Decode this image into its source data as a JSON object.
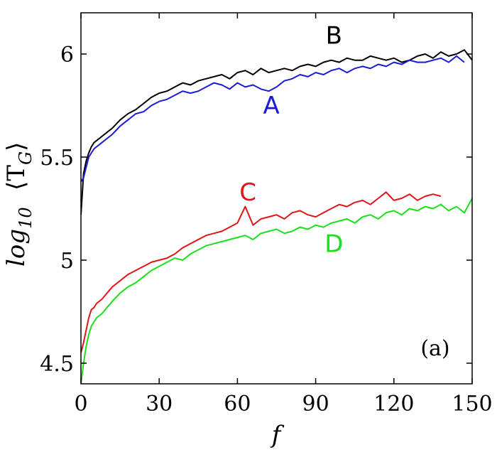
{
  "chart_data": {
    "type": "line",
    "xlabel": "f",
    "ylabel": "log10 ⟨T_G⟩",
    "ylabel_main": "log",
    "ylabel_sub": "10",
    "ylabel_angle": "⟨T",
    "ylabel_angle_sub": "G",
    "ylabel_angle_close": "⟩",
    "panel_label": "(a)",
    "xlim": [
      0,
      150
    ],
    "ylim": [
      4.4,
      6.2
    ],
    "xticks": [
      0,
      30,
      60,
      90,
      120,
      150
    ],
    "xtick_labels": [
      "0",
      "30",
      "60",
      "90",
      "120",
      "150"
    ],
    "yticks": [
      4.5,
      5,
      5.5,
      6
    ],
    "ytick_labels": [
      "4.5",
      "5",
      "5.5",
      "6"
    ],
    "grid": false,
    "series": [
      {
        "name": "B",
        "color": "#000000",
        "x": [
          0,
          1,
          2,
          3,
          4,
          5,
          6,
          8,
          10,
          12,
          15,
          18,
          21,
          24,
          27,
          30,
          33,
          36,
          39,
          42,
          45,
          48,
          51,
          54,
          57,
          60,
          63,
          66,
          69,
          72,
          75,
          78,
          81,
          84,
          87,
          90,
          93,
          96,
          99,
          102,
          105,
          108,
          111,
          114,
          117,
          120,
          123,
          126,
          129,
          132,
          135,
          138,
          141,
          144,
          147,
          150
        ],
        "values": [
          5.22,
          5.42,
          5.48,
          5.52,
          5.55,
          5.57,
          5.58,
          5.6,
          5.62,
          5.64,
          5.68,
          5.71,
          5.73,
          5.76,
          5.79,
          5.81,
          5.82,
          5.84,
          5.86,
          5.85,
          5.87,
          5.88,
          5.89,
          5.9,
          5.88,
          5.91,
          5.92,
          5.9,
          5.93,
          5.91,
          5.92,
          5.93,
          5.92,
          5.94,
          5.95,
          5.94,
          5.96,
          5.97,
          5.96,
          5.98,
          5.97,
          5.97,
          5.99,
          5.98,
          5.97,
          5.98,
          5.96,
          5.97,
          5.99,
          6.0,
          5.98,
          6.01,
          5.99,
          6.0,
          6.02,
          5.97
        ]
      },
      {
        "name": "A",
        "color": "#1a1ad9",
        "x": [
          0,
          1,
          2,
          3,
          4,
          5,
          6,
          8,
          10,
          12,
          15,
          18,
          21,
          24,
          27,
          30,
          33,
          36,
          39,
          42,
          45,
          48,
          51,
          54,
          57,
          60,
          63,
          66,
          69,
          72,
          75,
          78,
          81,
          84,
          87,
          90,
          93,
          96,
          99,
          102,
          105,
          108,
          111,
          114,
          117,
          120,
          123,
          126,
          129,
          132,
          135,
          138,
          141,
          144,
          147
        ],
        "values": [
          5.38,
          5.4,
          5.45,
          5.5,
          5.52,
          5.54,
          5.55,
          5.57,
          5.59,
          5.61,
          5.65,
          5.68,
          5.71,
          5.72,
          5.75,
          5.77,
          5.78,
          5.8,
          5.82,
          5.81,
          5.82,
          5.84,
          5.86,
          5.85,
          5.83,
          5.86,
          5.84,
          5.85,
          5.83,
          5.82,
          5.84,
          5.87,
          5.88,
          5.9,
          5.89,
          5.91,
          5.9,
          5.92,
          5.93,
          5.91,
          5.93,
          5.94,
          5.93,
          5.95,
          5.94,
          5.96,
          5.95,
          5.97,
          5.96,
          5.96,
          5.97,
          5.98,
          5.96,
          5.99,
          5.96
        ]
      },
      {
        "name": "C",
        "color": "#e01515",
        "x": [
          0,
          1,
          2,
          3,
          4,
          5,
          6,
          8,
          10,
          12,
          15,
          18,
          21,
          24,
          27,
          30,
          33,
          36,
          39,
          42,
          45,
          48,
          51,
          54,
          57,
          60,
          63,
          66,
          69,
          72,
          75,
          78,
          81,
          84,
          87,
          90,
          93,
          96,
          99,
          102,
          105,
          108,
          111,
          114,
          117,
          120,
          123,
          126,
          129,
          132,
          135,
          138
        ],
        "values": [
          4.55,
          4.6,
          4.66,
          4.72,
          4.76,
          4.77,
          4.79,
          4.81,
          4.84,
          4.87,
          4.9,
          4.93,
          4.95,
          4.97,
          4.99,
          5.0,
          5.01,
          5.03,
          5.06,
          5.08,
          5.1,
          5.12,
          5.13,
          5.14,
          5.16,
          5.18,
          5.26,
          5.17,
          5.2,
          5.21,
          5.22,
          5.2,
          5.23,
          5.24,
          5.22,
          5.21,
          5.23,
          5.25,
          5.27,
          5.26,
          5.28,
          5.29,
          5.27,
          5.3,
          5.33,
          5.29,
          5.3,
          5.32,
          5.29,
          5.31,
          5.32,
          5.31
        ]
      },
      {
        "name": "D",
        "color": "#1ae01a",
        "x": [
          0,
          1,
          2,
          3,
          4,
          5,
          6,
          8,
          10,
          12,
          15,
          18,
          21,
          24,
          27,
          30,
          33,
          36,
          39,
          42,
          45,
          48,
          51,
          54,
          57,
          60,
          63,
          66,
          69,
          72,
          75,
          78,
          81,
          84,
          87,
          90,
          93,
          96,
          99,
          102,
          105,
          108,
          111,
          114,
          117,
          120,
          123,
          126,
          129,
          132,
          135,
          138,
          141,
          144,
          147,
          150
        ],
        "values": [
          4.4,
          4.5,
          4.58,
          4.64,
          4.68,
          4.7,
          4.72,
          4.74,
          4.77,
          4.8,
          4.84,
          4.87,
          4.89,
          4.92,
          4.95,
          4.97,
          4.99,
          5.01,
          5.0,
          5.03,
          5.05,
          5.07,
          5.08,
          5.09,
          5.1,
          5.11,
          5.12,
          5.1,
          5.13,
          5.14,
          5.15,
          5.13,
          5.14,
          5.16,
          5.15,
          5.17,
          5.16,
          5.18,
          5.19,
          5.2,
          5.18,
          5.21,
          5.22,
          5.2,
          5.23,
          5.24,
          5.22,
          5.25,
          5.24,
          5.26,
          5.25,
          5.27,
          5.24,
          5.26,
          5.23,
          5.3
        ]
      }
    ],
    "series_labels": [
      {
        "text": "B",
        "x": 97,
        "y": 6.05,
        "color": "#000000"
      },
      {
        "text": "A",
        "x": 73,
        "y": 5.71,
        "color": "#1a1ad9"
      },
      {
        "text": "C",
        "x": 64,
        "y": 5.29,
        "color": "#e01515"
      },
      {
        "text": "D",
        "x": 97,
        "y": 5.04,
        "color": "#1ae01a"
      }
    ]
  }
}
